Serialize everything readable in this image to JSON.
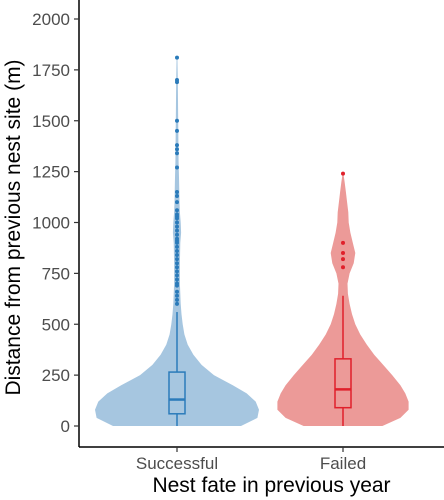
{
  "chart_data": {
    "type": "violin",
    "xlabel": "Nest fate in previous year",
    "ylabel": "Distance from previous nest site (m)",
    "categories": [
      "Successful",
      "Failed"
    ],
    "ylim": [
      0,
      2000
    ],
    "yticks": [
      0,
      250,
      500,
      750,
      1000,
      1250,
      1500,
      1750,
      2000
    ],
    "grid": false,
    "legend": "none",
    "series": [
      {
        "category": "Successful",
        "stroke_color": "#2b7bba",
        "fill_color": "#a6c6e0",
        "box": {
          "q1": 60,
          "median": 130,
          "q3": 265,
          "whisker_low": 0,
          "whisker_high": 560
        },
        "outliers": [
          600,
          620,
          640,
          660,
          690,
          700,
          720,
          740,
          760,
          780,
          800,
          820,
          840,
          860,
          880,
          900,
          910,
          920,
          940,
          960,
          980,
          1000,
          1020,
          1030,
          1040,
          1060,
          1100,
          1130,
          1150,
          1270,
          1340,
          1360,
          1380,
          1450,
          1500,
          1690,
          1700,
          1810
        ],
        "density": [
          [
            0,
            0.78
          ],
          [
            40,
            0.98
          ],
          [
            80,
            1.0
          ],
          [
            120,
            0.96
          ],
          [
            160,
            0.85
          ],
          [
            200,
            0.68
          ],
          [
            250,
            0.45
          ],
          [
            300,
            0.3
          ],
          [
            350,
            0.2
          ],
          [
            400,
            0.13
          ],
          [
            450,
            0.09
          ],
          [
            500,
            0.07
          ],
          [
            550,
            0.055
          ],
          [
            600,
            0.045
          ],
          [
            700,
            0.035
          ],
          [
            800,
            0.035
          ],
          [
            900,
            0.04
          ],
          [
            950,
            0.05
          ],
          [
            1000,
            0.045
          ],
          [
            1050,
            0.035
          ],
          [
            1100,
            0.03
          ],
          [
            1200,
            0.025
          ],
          [
            1300,
            0.02
          ],
          [
            1400,
            0.017
          ],
          [
            1500,
            0.015
          ],
          [
            1600,
            0.012
          ],
          [
            1700,
            0.01
          ],
          [
            1810,
            0.005
          ]
        ]
      },
      {
        "category": "Failed",
        "stroke_color": "#e0202b",
        "fill_color": "#ec9a98",
        "box": {
          "q1": 90,
          "median": 180,
          "q3": 330,
          "whisker_low": 0,
          "whisker_high": 640
        },
        "outliers": [
          780,
          820,
          850,
          900,
          1240
        ],
        "density": [
          [
            0,
            0.48
          ],
          [
            40,
            0.7
          ],
          [
            80,
            0.8
          ],
          [
            120,
            0.8
          ],
          [
            160,
            0.76
          ],
          [
            200,
            0.7
          ],
          [
            250,
            0.6
          ],
          [
            300,
            0.49
          ],
          [
            350,
            0.38
          ],
          [
            400,
            0.29
          ],
          [
            450,
            0.21
          ],
          [
            500,
            0.15
          ],
          [
            550,
            0.11
          ],
          [
            600,
            0.08
          ],
          [
            650,
            0.06
          ],
          [
            700,
            0.055
          ],
          [
            750,
            0.08
          ],
          [
            800,
            0.13
          ],
          [
            850,
            0.15
          ],
          [
            900,
            0.12
          ],
          [
            950,
            0.09
          ],
          [
            1000,
            0.07
          ],
          [
            1050,
            0.065
          ],
          [
            1100,
            0.05
          ],
          [
            1150,
            0.035
          ],
          [
            1200,
            0.02
          ],
          [
            1240,
            0.005
          ]
        ]
      }
    ]
  }
}
